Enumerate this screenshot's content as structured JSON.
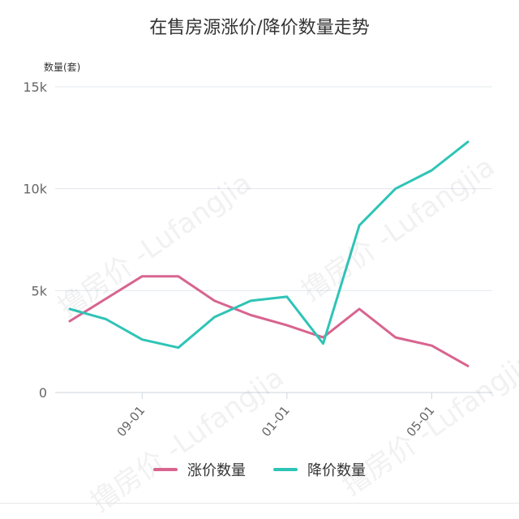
{
  "chart_data": {
    "type": "line",
    "title": "在售房源涨价/降价数量走势",
    "ylabel": "数量(套)",
    "xlabel": "",
    "ylim": [
      0,
      15000
    ],
    "yticks": [
      0,
      5000,
      10000,
      15000
    ],
    "ytick_labels": [
      "0",
      "5k",
      "10k",
      "15k"
    ],
    "x": [
      "2017-07",
      "2017-08",
      "2017-09",
      "2017-10",
      "2017-11",
      "2017-12",
      "2018-01",
      "2018-02",
      "2018-03",
      "2018-04",
      "2018-05",
      "2018-06"
    ],
    "xtick_labels": [
      "09-01",
      "01-01",
      "05-01"
    ],
    "xtick_positions": [
      "2017-09",
      "2018-01",
      "2018-05"
    ],
    "grid": "horizontal",
    "legend_position": "bottom",
    "series": [
      {
        "name": "涨价数量",
        "color": "#d8648f",
        "values": [
          3500,
          4600,
          5700,
          5700,
          4500,
          3800,
          3300,
          2700,
          4100,
          2700,
          2300,
          1300
        ]
      },
      {
        "name": "降价数量",
        "color": "#2ec4b6",
        "values": [
          4100,
          3600,
          2600,
          2200,
          3700,
          4500,
          4700,
          2400,
          8200,
          10000,
          10900,
          12300
        ]
      }
    ]
  },
  "watermark": "撸房价 -Lufangjia"
}
